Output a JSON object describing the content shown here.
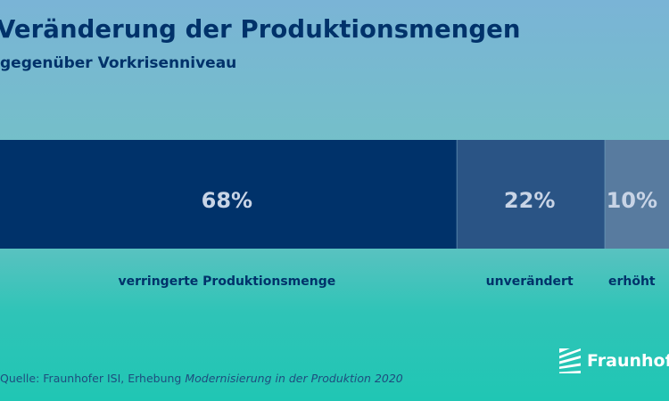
{
  "chart_data": {
    "type": "bar",
    "orientation": "horizontal-stacked",
    "title": "Veränderung der Produktionsmengen",
    "subtitle": "gegenüber Vorkrisenniveau",
    "categories": [
      "verringerte Produktionsmenge",
      "unverändert",
      "erhöht"
    ],
    "values": [
      68,
      22,
      10
    ],
    "value_labels": [
      "68%",
      "22%",
      "10%"
    ],
    "unit": "%",
    "colors": [
      "#00326a",
      "#2a5485",
      "#587b9f"
    ],
    "label_color": "#c8d4e6",
    "legend": "none",
    "grid": false
  },
  "footer": {
    "source_prefix": "Quelle: Fraunhofer ISI, Erhebung ",
    "source_italic": "Modernisierung in der Produktion 2020"
  },
  "brand": {
    "name": "Fraunhofer",
    "logo_icon": "fraunhofer-logo-icon",
    "color": "#ffffff"
  }
}
